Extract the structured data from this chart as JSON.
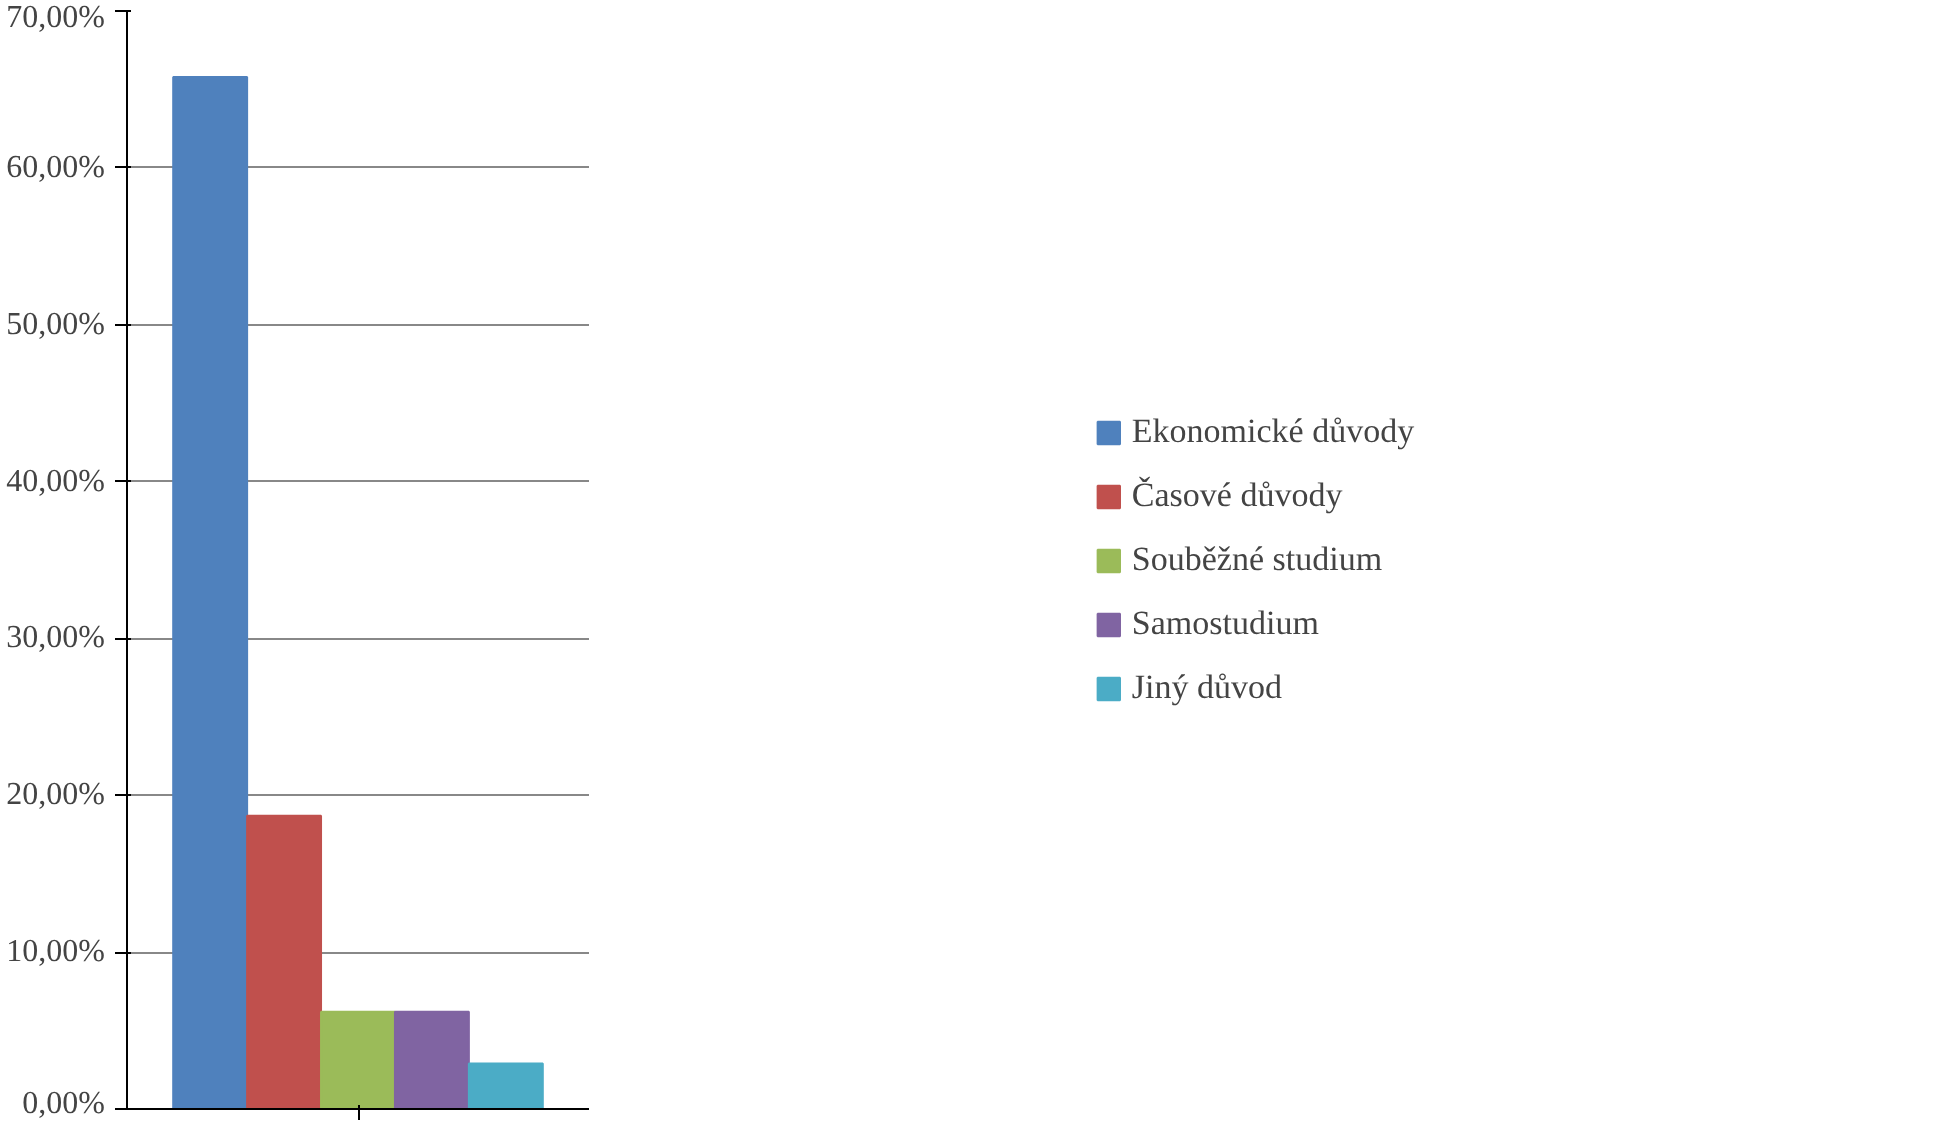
{
  "chart_data": {
    "type": "bar",
    "categories": [
      null
    ],
    "series": [
      {
        "name": "Ekonomické důvody",
        "color": "#4f81bd",
        "values": [
          65.8
        ]
      },
      {
        "name": "Časové důvody",
        "color": "#c0504d",
        "values": [
          18.7
        ]
      },
      {
        "name": "Souběžné studium",
        "color": "#9bbb59",
        "values": [
          6.2
        ]
      },
      {
        "name": "Samostudium",
        "color": "#8064a2",
        "values": [
          6.2
        ]
      },
      {
        "name": "Jiný důvod",
        "color": "#4bacc6",
        "values": [
          2.9
        ]
      }
    ],
    "ylim": [
      0,
      70
    ],
    "yticks": [
      {
        "value": 0,
        "label": "0,00%"
      },
      {
        "value": 10,
        "label": "10,00%"
      },
      {
        "value": 20,
        "label": "20,00%"
      },
      {
        "value": 30,
        "label": "30,00%"
      },
      {
        "value": 40,
        "label": "40,00%"
      },
      {
        "value": 50,
        "label": "50,00%"
      },
      {
        "value": 60,
        "label": "60,00%"
      },
      {
        "value": 70,
        "label": "70,00%"
      }
    ],
    "grid": "y",
    "legend": "right",
    "tick_labels": "y"
  }
}
